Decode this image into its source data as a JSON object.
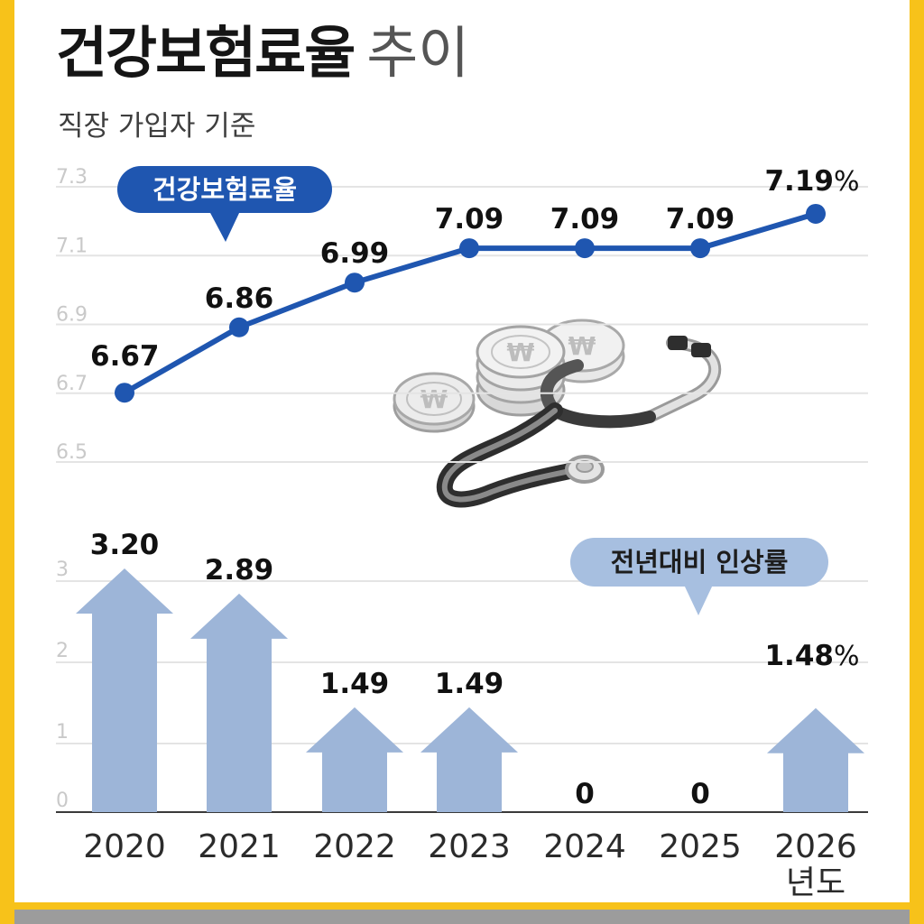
{
  "title": "건강보험료율",
  "title_sub": "추이",
  "subtitle": "직장 가입자 기준",
  "colors": {
    "frame": "#f7c21a",
    "line": "#1f56b0",
    "bar": "#9db5d8",
    "callout_line_bg": "#1f56b0",
    "callout_bar_bg": "#a7bfe0"
  },
  "decoration": {
    "icons": [
      "stethoscope-icon",
      "won-coin-icon"
    ]
  },
  "chart_data": [
    {
      "type": "line",
      "categories": [
        "2020",
        "2021",
        "2022",
        "2023",
        "2024",
        "2025",
        "2026"
      ],
      "series": [
        {
          "name": "건강보험료율",
          "values": [
            6.67,
            6.86,
            6.99,
            7.09,
            7.09,
            7.09,
            7.19
          ]
        }
      ],
      "value_labels": [
        "6.67",
        "6.86",
        "6.99",
        "7.09",
        "7.09",
        "7.09",
        "7.19"
      ],
      "last_label_suffix": "%",
      "yticks": [
        "7.3",
        "7.1",
        "6.9",
        "6.7",
        "6.5"
      ],
      "ylim": [
        6.5,
        7.3
      ],
      "grid": true
    },
    {
      "type": "bar",
      "categories": [
        "2020",
        "2021",
        "2022",
        "2023",
        "2024",
        "2025",
        "2026"
      ],
      "series": [
        {
          "name": "전년대비 인상률",
          "values": [
            3.2,
            2.89,
            1.49,
            1.49,
            0,
            0,
            1.48
          ]
        }
      ],
      "value_labels": [
        "3.20",
        "2.89",
        "1.49",
        "1.49",
        "0",
        "0",
        "1.48"
      ],
      "last_label_suffix": "%",
      "yticks": [
        "3",
        "2",
        "1",
        "0"
      ],
      "ylim": [
        0,
        3.2
      ],
      "grid": true,
      "xlabel": "년도"
    }
  ]
}
